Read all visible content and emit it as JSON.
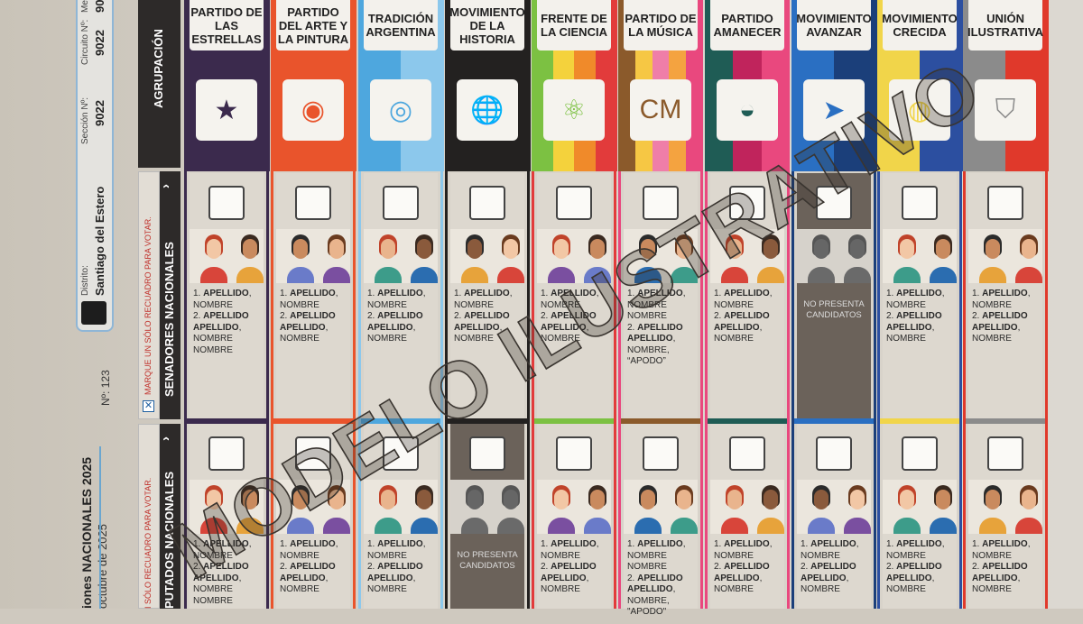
{
  "header": {
    "election_title_bold": "iones NACIONALES 2025",
    "election_date": "octubre de 2025",
    "ballot_number": "Nº: 123",
    "distrito_label": "Distrito:",
    "distrito_value": "Santiago del Estero",
    "seccion_label": "Sección Nº:",
    "seccion_value": "9022",
    "circuito_label": "Circuito Nº:",
    "circuito_value": "9022",
    "mesa_label": "Me",
    "mesa_value": "90"
  },
  "sidebar": {
    "agrupacion": "AGRUPACIÓN",
    "senadores": "SENADORES NACIONALES",
    "senadores_instruction": "MARQUE UN SÓLO RECUADRO PARA VOTAR.",
    "diputados": "PUTADOS NACIONALES",
    "diputados_instruction": "I SÓLO RECUADRO PARA VOTAR."
  },
  "watermark": "MODELO ILUSTRATIVO",
  "no_candidates": "NO PRESENTA CANDIDATOS",
  "parties": [
    {
      "name": "PARTIDO DE LAS ESTRELLAS",
      "colors": [
        "#3b2a4d"
      ],
      "icon": "star-icon",
      "senadores": [
        "1. ",
        "APELLIDO",
        ",",
        "NOMBRE",
        "2. ",
        "APELLIDO APELLIDO",
        ",",
        "NOMBRE NOMBRE"
      ],
      "diputados": [
        "1. ",
        "APELLIDO",
        ",",
        "NOMBRE",
        "2. ",
        "APELLIDO APELLIDO",
        ",",
        "NOMBRE NOMBRE"
      ]
    },
    {
      "name": "PARTIDO DEL ARTE Y LA PINTURA",
      "colors": [
        "#e9542c"
      ],
      "icon": "art-face-icon",
      "senadores": [
        "1. ",
        "APELLIDO",
        ",",
        "NOMBRE",
        "2. ",
        "APELLIDO APELLIDO",
        ",",
        "NOMBRE"
      ],
      "diputados": [
        "1. ",
        "APELLIDO",
        ",",
        "NOMBRE",
        "2. ",
        "APELLIDO APELLIDO",
        ",",
        "NOMBRE"
      ]
    },
    {
      "name": "TRADICIÓN ARGENTINA",
      "colors": [
        "#4ea7de",
        "#8cc8ec"
      ],
      "icon": "fingerprint-icon",
      "senadores": [
        "1. ",
        "APELLIDO",
        ",",
        "NOMBRE",
        "2. ",
        "APELLIDO APELLIDO",
        ",",
        "NOMBRE"
      ],
      "diputados": [
        "1. ",
        "APELLIDO",
        ",",
        "NOMBRE",
        "2. ",
        "APELLIDO APELLIDO",
        ",",
        "NOMBRE"
      ]
    },
    {
      "name": "MOVIMIENTO DE LA HISTORIA",
      "colors": [
        "#232120"
      ],
      "icon": "globe-icon",
      "senadores": [
        "1. ",
        "APELLIDO",
        ",",
        "NOMBRE",
        "2. ",
        "APELLIDO APELLIDO",
        ",",
        "NOMBRE"
      ],
      "diputados": null
    },
    {
      "name": "FRENTE DE LA CIENCIA",
      "colors": [
        "#7cc142",
        "#f4d23c",
        "#f08a2a",
        "#e23b3b"
      ],
      "icon": "atom-icon",
      "senadores": [
        "1. ",
        "APELLIDO",
        ",",
        "NOMBRE",
        "2. ",
        "APELLIDO APELLIDO",
        ",",
        "NOMBRE"
      ],
      "diputados": [
        "1. ",
        "APELLIDO",
        ",",
        "NOMBRE",
        "2. ",
        "APELLIDO APELLIDO",
        ",",
        "NOMBRE"
      ]
    },
    {
      "name": "PARTIDO DE LA MÚSICA",
      "colors": [
        "#8b5a2b",
        "#f6c744",
        "#ef7ea8",
        "#f4a340",
        "#e9487e"
      ],
      "icon": "headphones-icon",
      "senadores": [
        "1. ",
        "APELLIDO",
        ",",
        "NOMBRE NOMBRE",
        "2. ",
        "APELLIDO APELLIDO",
        ",",
        "NOMBRE, “APODO”"
      ],
      "diputados": [
        "1. ",
        "APELLIDO",
        ",",
        "NOMBRE NOMBRE",
        "2. ",
        "APELLIDO APELLIDO",
        ",",
        "NOMBRE, \"APODO\""
      ]
    },
    {
      "name": "PARTIDO AMANECER",
      "colors": [
        "#1f5c55",
        "#c0245c",
        "#e9487e"
      ],
      "icon": "sunrise-book-icon",
      "senadores": [
        "1. ",
        "APELLIDO",
        ",",
        "NOMBRE",
        "2. ",
        "APELLIDO APELLIDO",
        ",",
        "NOMBRE"
      ],
      "diputados": [
        "1. ",
        "APELLIDO",
        ",",
        "NOMBRE",
        "2. ",
        "APELLIDO APELLIDO",
        ",",
        "NOMBRE"
      ]
    },
    {
      "name": "MOVIMIENTO AVANZAR",
      "colors": [
        "#2a6fc2",
        "#1b3f7a"
      ],
      "icon": "arrows-icon",
      "senadores": null,
      "diputados": [
        "1. ",
        "APELLIDO",
        ",",
        "NOMBRE",
        "2. ",
        "APELLIDO APELLIDO",
        ",",
        "NOMBRE"
      ]
    },
    {
      "name": "MOVIMIENTO CRECIDA",
      "colors": [
        "#f1d54a",
        "#2c4fa0"
      ],
      "icon": "wave-icon",
      "senadores": [
        "1. ",
        "APELLIDO",
        ",",
        "NOMBRE",
        "2. ",
        "APELLIDO APELLIDO",
        ",",
        "NOMBRE"
      ],
      "diputados": [
        "1. ",
        "APELLIDO",
        ",",
        "NOMBRE",
        "2. ",
        "APELLIDO APELLIDO",
        ",",
        "NOMBRE"
      ]
    },
    {
      "name": "UNIÓN ILUSTRATIVA",
      "colors": [
        "#8b8b8b",
        "#e0392b"
      ],
      "icon": "shield-leaf-icon",
      "senadores": [
        "1. ",
        "APELLIDO",
        ",",
        "NOMBRE",
        "2. ",
        "APELLIDO APELLIDO",
        ",",
        "NOMBRE"
      ],
      "diputados": [
        "1. ",
        "APELLIDO",
        ",",
        "NOMBRE",
        "2. ",
        "APELLIDO APELLIDO",
        ",",
        "NOMBRE"
      ]
    }
  ]
}
